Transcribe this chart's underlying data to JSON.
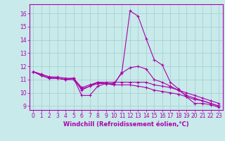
{
  "xlabel": "Windchill (Refroidissement éolien,°C)",
  "background_color": "#c8eaea",
  "grid_color": "#a0cccc",
  "line_color": "#aa00aa",
  "xlim": [
    -0.5,
    23.5
  ],
  "ylim": [
    8.7,
    16.7
  ],
  "yticks": [
    9,
    10,
    11,
    12,
    13,
    14,
    15,
    16
  ],
  "xticks": [
    0,
    1,
    2,
    3,
    4,
    5,
    6,
    7,
    8,
    9,
    10,
    11,
    12,
    13,
    14,
    15,
    16,
    17,
    18,
    19,
    20,
    21,
    22,
    23
  ],
  "series": [
    [
      11.6,
      11.3,
      11.1,
      11.1,
      11.0,
      11.1,
      9.8,
      9.8,
      10.5,
      10.7,
      10.6,
      11.6,
      16.2,
      15.8,
      14.1,
      12.5,
      12.1,
      10.8,
      10.3,
      9.7,
      9.2,
      9.2,
      9.1,
      8.9
    ],
    [
      11.6,
      11.3,
      11.1,
      11.1,
      11.0,
      11.1,
      10.2,
      10.5,
      10.8,
      10.7,
      10.7,
      11.5,
      11.9,
      12.0,
      11.8,
      11.0,
      10.8,
      10.5,
      10.2,
      9.8,
      9.6,
      9.4,
      9.2,
      9.0
    ],
    [
      11.6,
      11.4,
      11.2,
      11.2,
      11.1,
      11.1,
      10.4,
      10.6,
      10.8,
      10.8,
      10.8,
      10.8,
      10.8,
      10.8,
      10.8,
      10.6,
      10.5,
      10.4,
      10.2,
      10.0,
      9.8,
      9.6,
      9.4,
      9.2
    ],
    [
      11.6,
      11.4,
      11.2,
      11.1,
      11.0,
      11.0,
      10.3,
      10.5,
      10.7,
      10.7,
      10.6,
      10.6,
      10.6,
      10.5,
      10.4,
      10.2,
      10.1,
      10.0,
      9.9,
      9.7,
      9.5,
      9.4,
      9.2,
      9.0
    ]
  ],
  "tick_labelsize": 5.5,
  "xlabel_fontsize": 6,
  "marker_size": 3.5,
  "lw": 0.8
}
